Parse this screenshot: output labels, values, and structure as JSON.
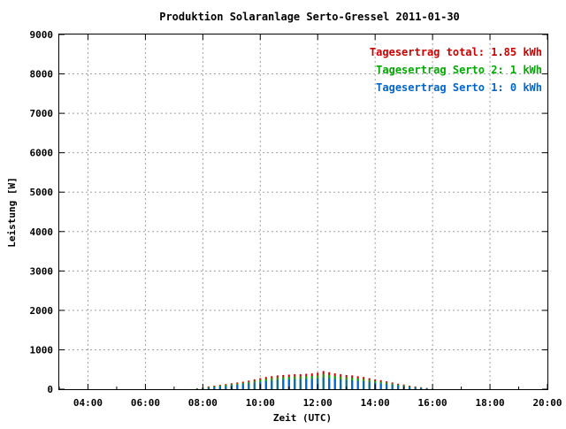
{
  "chart_data": {
    "type": "bar",
    "title": "Produktion Solaranlage Serto-Gressel 2011-01-30",
    "xlabel": "Zeit (UTC)",
    "ylabel": "Leistung [W]",
    "xlim": [
      3.0,
      20.0
    ],
    "ylim": [
      0,
      9000
    ],
    "x_ticks": [
      {
        "value": 4,
        "label": "04:00"
      },
      {
        "value": 6,
        "label": "06:00"
      },
      {
        "value": 8,
        "label": "08:00"
      },
      {
        "value": 10,
        "label": "10:00"
      },
      {
        "value": 12,
        "label": "12:00"
      },
      {
        "value": 14,
        "label": "14:00"
      },
      {
        "value": 16,
        "label": "16:00"
      },
      {
        "value": 18,
        "label": "18:00"
      },
      {
        "value": 20,
        "label": "20:00"
      }
    ],
    "y_ticks": [
      0,
      1000,
      2000,
      3000,
      4000,
      5000,
      6000,
      7000,
      8000,
      9000
    ],
    "grid": true,
    "legend_placement": "top-right",
    "legend": [
      {
        "text": "Tagesertrag total: 1.85 kWh",
        "color": "#cc0000"
      },
      {
        "text": "Tagesertrag Serto 2: 1 kWh",
        "color": "#00aa00"
      },
      {
        "text": "Tagesertrag Serto 1: 0 kWh",
        "color": "#0066cc"
      }
    ],
    "colors": {
      "total": "#cc0000",
      "serto2": "#00aa00",
      "serto1": "#0066cc"
    },
    "x": [
      7.8,
      8.0,
      8.2,
      8.4,
      8.6,
      8.8,
      9.0,
      9.2,
      9.4,
      9.6,
      9.8,
      10.0,
      10.2,
      10.4,
      10.6,
      10.8,
      11.0,
      11.2,
      11.4,
      11.6,
      11.8,
      12.0,
      12.2,
      12.4,
      12.6,
      12.8,
      13.0,
      13.2,
      13.4,
      13.6,
      13.8,
      14.0,
      14.2,
      14.4,
      14.6,
      14.8,
      15.0,
      15.2,
      15.4,
      15.6,
      15.8,
      16.0
    ],
    "series": [
      {
        "name": "Tagesertrag total",
        "values": [
          20,
          40,
          70,
          90,
          110,
          130,
          150,
          170,
          190,
          220,
          250,
          280,
          310,
          330,
          350,
          360,
          370,
          380,
          380,
          390,
          400,
          420,
          460,
          430,
          400,
          380,
          360,
          350,
          330,
          310,
          280,
          250,
          230,
          200,
          170,
          140,
          120,
          90,
          70,
          50,
          30,
          10
        ]
      },
      {
        "name": "Tagesertrag Serto 2",
        "values": [
          15,
          30,
          55,
          70,
          90,
          110,
          125,
          140,
          160,
          185,
          210,
          235,
          260,
          280,
          295,
          305,
          310,
          320,
          320,
          330,
          335,
          350,
          380,
          360,
          335,
          320,
          300,
          290,
          275,
          260,
          235,
          210,
          190,
          165,
          140,
          115,
          100,
          75,
          55,
          40,
          25,
          8
        ]
      },
      {
        "name": "Tagesertrag Serto 1",
        "values": [
          5,
          15,
          35,
          50,
          65,
          80,
          95,
          110,
          125,
          145,
          165,
          185,
          205,
          220,
          235,
          245,
          250,
          255,
          255,
          260,
          265,
          275,
          295,
          280,
          262,
          250,
          235,
          225,
          215,
          205,
          185,
          165,
          150,
          130,
          110,
          90,
          78,
          60,
          45,
          30,
          18,
          5
        ]
      }
    ]
  }
}
